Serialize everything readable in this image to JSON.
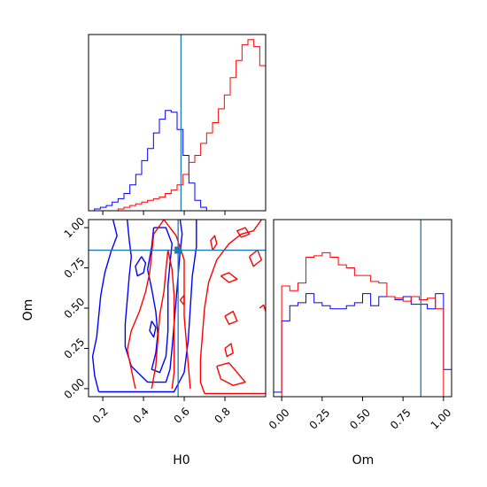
{
  "chart_data": [
    {
      "type": "histogram",
      "panel": "H0 marginal",
      "xlabel": "",
      "ylabel": "",
      "xlim": [
        0.1,
        1.0
      ],
      "truth": 0.57,
      "truth_color": "#1f77b4",
      "series": [
        {
          "color": "#0000ff",
          "bin_edges": [
            0.1,
            0.13,
            0.16,
            0.19,
            0.22,
            0.25,
            0.28,
            0.31,
            0.34,
            0.37,
            0.4,
            0.43,
            0.46,
            0.49,
            0.52,
            0.55,
            0.58,
            0.61,
            0.64,
            0.67,
            0.7,
            0.73,
            0.76,
            0.79,
            0.82,
            0.85,
            0.88,
            0.91,
            0.94,
            0.97,
            1.0
          ],
          "values": [
            0,
            1,
            2,
            3,
            5,
            7,
            10,
            15,
            21,
            29,
            36,
            45,
            53,
            58,
            57,
            47,
            32,
            16,
            6,
            2,
            0,
            0,
            0,
            0,
            0,
            0,
            0,
            0,
            0,
            0
          ]
        },
        {
          "color": "#ff0000",
          "bin_edges": [
            0.1,
            0.13,
            0.16,
            0.19,
            0.22,
            0.25,
            0.28,
            0.31,
            0.34,
            0.37,
            0.4,
            0.43,
            0.46,
            0.49,
            0.52,
            0.55,
            0.58,
            0.61,
            0.64,
            0.67,
            0.7,
            0.73,
            0.76,
            0.79,
            0.82,
            0.85,
            0.88,
            0.91,
            0.94,
            0.97,
            1.0
          ],
          "values": [
            0,
            0,
            0,
            0,
            0,
            1,
            2,
            3,
            4,
            5,
            6,
            7,
            8,
            10,
            12,
            15,
            21,
            28,
            32,
            39,
            45,
            51,
            59,
            67,
            77,
            87,
            96,
            99,
            95,
            84
          ]
        }
      ]
    },
    {
      "type": "contour",
      "panel": "H0 vs Om joint",
      "xlabel": "H0",
      "ylabel": "Om",
      "xlim": [
        0.13,
        1.0
      ],
      "ylim": [
        -0.05,
        1.05
      ],
      "xticks": [
        "0.2",
        "0.4",
        "0.6",
        "0.8"
      ],
      "xtick_values": [
        0.2,
        0.4,
        0.6,
        0.8
      ],
      "yticks": [
        "0.00",
        "0.25",
        "0.50",
        "0.75",
        "1.00"
      ],
      "ytick_values": [
        0.0,
        0.25,
        0.5,
        0.75,
        1.0
      ],
      "truth": [
        0.57,
        0.86
      ],
      "truth_color": "#1f77b4",
      "series": [
        {
          "color": "#0000ff",
          "contours": [
            [
              [
                0.25,
                1.05
              ],
              [
                0.27,
                0.95
              ],
              [
                0.24,
                0.85
              ],
              [
                0.21,
                0.72
              ],
              [
                0.19,
                0.58
              ],
              [
                0.18,
                0.45
              ],
              [
                0.17,
                0.32
              ],
              [
                0.15,
                0.2
              ],
              [
                0.16,
                0.08
              ],
              [
                0.18,
                -0.02
              ]
            ],
            [
              [
                0.18,
                -0.02
              ],
              [
                0.3,
                -0.02
              ],
              [
                0.45,
                -0.02
              ],
              [
                0.55,
                -0.02
              ],
              [
                0.6,
                0.1
              ],
              [
                0.62,
                0.3
              ],
              [
                0.63,
                0.5
              ],
              [
                0.64,
                0.7
              ],
              [
                0.66,
                0.88
              ],
              [
                0.66,
                1.05
              ]
            ],
            [
              [
                0.32,
                1.05
              ],
              [
                0.33,
                0.92
              ],
              [
                0.34,
                0.82
              ],
              [
                0.33,
                0.7
              ],
              [
                0.32,
                0.55
              ],
              [
                0.31,
                0.4
              ],
              [
                0.31,
                0.26
              ],
              [
                0.34,
                0.14
              ],
              [
                0.42,
                0.04
              ],
              [
                0.51,
                0.04
              ],
              [
                0.53,
                0.12
              ],
              [
                0.54,
                0.25
              ],
              [
                0.55,
                0.4
              ],
              [
                0.56,
                0.55
              ],
              [
                0.57,
                0.7
              ],
              [
                0.58,
                0.85
              ],
              [
                0.59,
                0.96
              ],
              [
                0.58,
                1.05
              ]
            ],
            [
              [
                0.45,
                1.0
              ],
              [
                0.44,
                0.88
              ],
              [
                0.42,
                0.74
              ],
              [
                0.44,
                0.62
              ],
              [
                0.46,
                0.48
              ],
              [
                0.47,
                0.34
              ],
              [
                0.46,
                0.22
              ],
              [
                0.44,
                0.12
              ],
              [
                0.48,
                0.1
              ],
              [
                0.51,
                0.2
              ],
              [
                0.52,
                0.36
              ],
              [
                0.52,
                0.5
              ],
              [
                0.52,
                0.64
              ],
              [
                0.53,
                0.78
              ],
              [
                0.54,
                0.9
              ],
              [
                0.51,
                1.0
              ],
              [
                0.45,
                1.0
              ]
            ],
            [
              [
                0.39,
                0.82
              ],
              [
                0.41,
                0.78
              ],
              [
                0.4,
                0.72
              ],
              [
                0.37,
                0.7
              ],
              [
                0.36,
                0.76
              ],
              [
                0.39,
                0.82
              ]
            ],
            [
              [
                0.44,
                0.42
              ],
              [
                0.46,
                0.38
              ],
              [
                0.45,
                0.32
              ],
              [
                0.43,
                0.36
              ],
              [
                0.44,
                0.42
              ]
            ]
          ]
        },
        {
          "color": "#ff0000",
          "contours": [
            [
              [
                0.36,
                0.0
              ],
              [
                0.34,
                0.12
              ],
              [
                0.32,
                0.24
              ],
              [
                0.34,
                0.36
              ],
              [
                0.38,
                0.48
              ],
              [
                0.41,
                0.6
              ],
              [
                0.43,
                0.72
              ],
              [
                0.44,
                0.84
              ],
              [
                0.45,
                0.96
              ],
              [
                0.5,
                1.05
              ]
            ],
            [
              [
                0.5,
                1.05
              ],
              [
                0.56,
                0.95
              ],
              [
                0.6,
                0.8
              ],
              [
                0.6,
                0.62
              ],
              [
                0.6,
                0.45
              ],
              [
                0.61,
                0.3
              ],
              [
                0.62,
                0.15
              ],
              [
                0.63,
                0.0
              ]
            ],
            [
              [
                0.44,
                0.0
              ],
              [
                0.46,
                0.14
              ],
              [
                0.47,
                0.3
              ],
              [
                0.48,
                0.46
              ],
              [
                0.5,
                0.6
              ],
              [
                0.51,
                0.74
              ],
              [
                0.52,
                0.86
              ],
              [
                0.54,
                0.74
              ],
              [
                0.55,
                0.58
              ],
              [
                0.55,
                0.42
              ],
              [
                0.55,
                0.26
              ],
              [
                0.55,
                0.1
              ],
              [
                0.54,
                0.0
              ]
            ],
            [
              [
                0.98,
                1.05
              ],
              [
                0.94,
                0.98
              ],
              [
                0.88,
                0.96
              ],
              [
                0.82,
                0.9
              ],
              [
                0.76,
                0.8
              ],
              [
                0.72,
                0.66
              ],
              [
                0.7,
                0.5
              ],
              [
                0.69,
                0.34
              ],
              [
                0.68,
                0.18
              ],
              [
                0.68,
                0.04
              ],
              [
                0.7,
                -0.03
              ]
            ],
            [
              [
                0.7,
                -0.03
              ],
              [
                0.8,
                -0.03
              ],
              [
                0.92,
                -0.03
              ],
              [
                1.0,
                -0.03
              ]
            ],
            [
              [
                0.92,
                0.82
              ],
              [
                0.96,
                0.86
              ],
              [
                0.98,
                0.8
              ],
              [
                0.94,
                0.76
              ],
              [
                0.92,
                0.82
              ]
            ],
            [
              [
                0.78,
                0.7
              ],
              [
                0.82,
                0.72
              ],
              [
                0.86,
                0.68
              ],
              [
                0.82,
                0.66
              ],
              [
                0.78,
                0.7
              ]
            ],
            [
              [
                0.8,
                0.45
              ],
              [
                0.84,
                0.48
              ],
              [
                0.86,
                0.42
              ],
              [
                0.82,
                0.4
              ],
              [
                0.8,
                0.45
              ]
            ],
            [
              [
                0.8,
                0.25
              ],
              [
                0.83,
                0.28
              ],
              [
                0.84,
                0.22
              ],
              [
                0.81,
                0.2
              ],
              [
                0.8,
                0.25
              ]
            ],
            [
              [
                0.76,
                0.14
              ],
              [
                0.82,
                0.16
              ],
              [
                0.86,
                0.1
              ],
              [
                0.9,
                0.04
              ],
              [
                0.84,
                0.02
              ],
              [
                0.78,
                0.06
              ],
              [
                0.76,
                0.14
              ]
            ],
            [
              [
                0.88,
                0.94
              ],
              [
                0.86,
                0.98
              ],
              [
                0.9,
                1.0
              ],
              [
                0.92,
                0.96
              ],
              [
                0.88,
                0.94
              ]
            ],
            [
              [
                0.74,
                0.86
              ],
              [
                0.73,
                0.92
              ],
              [
                0.75,
                0.95
              ],
              [
                0.76,
                0.9
              ],
              [
                0.74,
                0.86
              ]
            ],
            [
              [
                0.58,
                0.55
              ],
              [
                0.6,
                0.58
              ],
              [
                0.6,
                0.52
              ],
              [
                0.58,
                0.55
              ]
            ],
            [
              [
                0.97,
                0.5
              ],
              [
                0.99,
                0.52
              ],
              [
                1.0,
                0.48
              ]
            ]
          ]
        }
      ]
    },
    {
      "type": "histogram",
      "panel": "Om marginal",
      "xlabel": "Om",
      "ylabel": "",
      "xlim": [
        -0.05,
        1.05
      ],
      "xticks": [
        "0.00",
        "0.25",
        "0.50",
        "0.75",
        "1.00"
      ],
      "xtick_values": [
        0.0,
        0.25,
        0.5,
        0.75,
        1.0
      ],
      "truth": 0.86,
      "truth_color": "#1f77b4",
      "series": [
        {
          "color": "#0000ff",
          "bin_edges": [
            -0.05,
            0.0,
            0.05,
            0.1,
            0.15,
            0.2,
            0.25,
            0.3,
            0.35,
            0.4,
            0.45,
            0.5,
            0.55,
            0.6,
            0.65,
            0.7,
            0.75,
            0.8,
            0.85,
            0.9,
            0.95,
            1.0,
            1.05
          ],
          "values": [
            3,
            50,
            60,
            62,
            68,
            62,
            60,
            58,
            58,
            60,
            62,
            68,
            60,
            66,
            66,
            64,
            66,
            61,
            61,
            58,
            68,
            18
          ]
        },
        {
          "color": "#ff0000",
          "bin_edges": [
            -0.05,
            0.0,
            0.05,
            0.1,
            0.15,
            0.2,
            0.25,
            0.3,
            0.35,
            0.4,
            0.45,
            0.5,
            0.55,
            0.6,
            0.65,
            0.7,
            0.75,
            0.8,
            0.85,
            0.9,
            0.95,
            1.0,
            1.05
          ],
          "values": [
            0,
            73,
            70,
            75,
            92,
            93,
            95,
            92,
            87,
            85,
            80,
            80,
            76,
            75,
            66,
            65,
            63,
            66,
            64,
            65,
            58,
            0
          ]
        }
      ]
    }
  ]
}
